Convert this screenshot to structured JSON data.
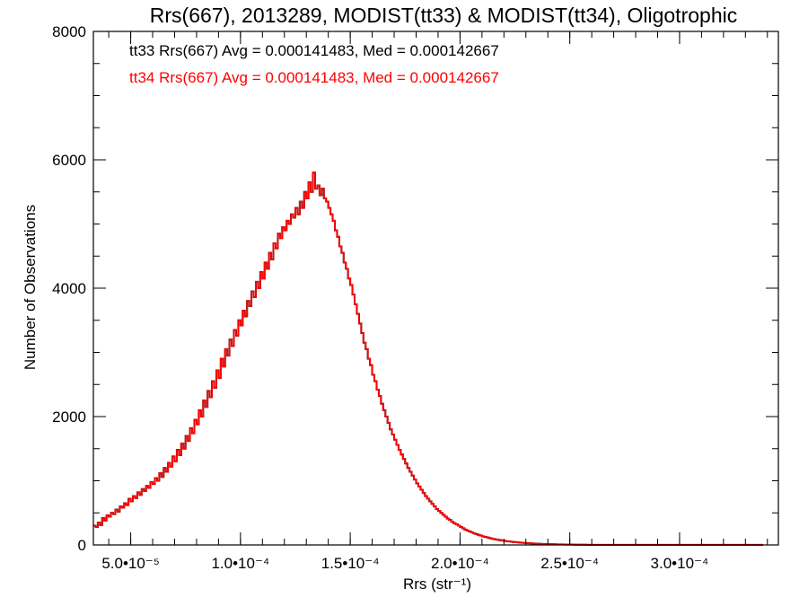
{
  "chart_data": {
    "type": "histogram",
    "title": "Rrs(667), 2013289, MODIST(tt33) & MODIST(tt34), Oligotrophic",
    "xlabel": "Rrs (str⁻¹)",
    "ylabel": "Number of Observations",
    "xlim": [
      3.3e-05,
      0.000345
    ],
    "ylim": [
      0,
      8000
    ],
    "x_ticks": [
      {
        "value": 5e-05,
        "label": "5.0•10⁻⁵"
      },
      {
        "value": 0.0001,
        "label": "1.0•10⁻⁴"
      },
      {
        "value": 0.00015,
        "label": "1.5•10⁻⁴"
      },
      {
        "value": 0.0002,
        "label": "2.0•10⁻⁴"
      },
      {
        "value": 0.00025,
        "label": "2.5•10⁻⁴"
      },
      {
        "value": 0.0003,
        "label": "3.0•10⁻⁴"
      }
    ],
    "y_ticks": [
      {
        "value": 0,
        "label": "0"
      },
      {
        "value": 2000,
        "label": "2000"
      },
      {
        "value": 4000,
        "label": "4000"
      },
      {
        "value": 6000,
        "label": "6000"
      },
      {
        "value": 8000,
        "label": "8000"
      }
    ],
    "annotations": [
      {
        "text": "tt33 Rrs(667) Avg = 0.000141483, Med = 0.000142667",
        "color": "#000000"
      },
      {
        "text": "tt34 Rrs(667) Avg = 0.000141483, Med = 0.000142667",
        "color": "#ff0000"
      }
    ],
    "bin_start": 3.3e-05,
    "bin_width": 1e-06,
    "series": [
      {
        "name": "tt33",
        "color": "#000000",
        "values": [
          300,
          280,
          350,
          310,
          420,
          380,
          460,
          440,
          500,
          480,
          550,
          520,
          600,
          580,
          650,
          620,
          720,
          680,
          760,
          730,
          820,
          780,
          870,
          840,
          920,
          890,
          980,
          950,
          1040,
          1000,
          1120,
          1060,
          1200,
          1140,
          1280,
          1220,
          1380,
          1300,
          1480,
          1400,
          1580,
          1500,
          1700,
          1620,
          1820,
          1740,
          1950,
          1880,
          2100,
          2000,
          2250,
          2150,
          2400,
          2300,
          2550,
          2450,
          2720,
          2600,
          2900,
          2780,
          3050,
          2950,
          3200,
          3100,
          3350,
          3260,
          3500,
          3420,
          3650,
          3560,
          3800,
          3720,
          3950,
          3860,
          4100,
          4000,
          4250,
          4150,
          4400,
          4300,
          4550,
          4450,
          4700,
          4620,
          4850,
          4780,
          4950,
          4900,
          5050,
          5000,
          5150,
          5100,
          5250,
          5150,
          5350,
          5250,
          5500,
          5400,
          5650,
          5500,
          5800,
          5550,
          5600,
          5450,
          5550,
          5400,
          5350,
          5250,
          5150,
          5050,
          4900,
          4800,
          4650,
          4550,
          4400,
          4300,
          4150,
          4050,
          3900,
          3750,
          3600,
          3450,
          3300,
          3150,
          3050,
          2900,
          2800,
          2650,
          2550,
          2420,
          2320,
          2200,
          2100,
          2000,
          1900,
          1800,
          1720,
          1640,
          1560,
          1480,
          1410,
          1340,
          1270,
          1200,
          1140,
          1080,
          1020,
          960,
          910,
          860,
          810,
          760,
          720,
          680,
          640,
          600,
          560,
          530,
          500,
          470,
          440,
          410,
          390,
          360,
          340,
          320,
          300,
          280,
          260,
          240,
          225,
          210,
          195,
          180,
          170,
          158,
          146,
          135,
          126,
          117,
          108,
          100,
          93,
          86,
          80,
          74,
          68,
          63,
          58,
          54,
          50,
          46,
          43,
          40,
          37,
          34,
          31,
          29,
          27,
          25,
          23,
          21,
          19,
          18,
          16,
          15,
          14,
          13,
          12,
          11,
          10,
          9,
          8,
          8,
          7,
          6,
          6,
          5,
          5,
          4,
          4,
          4,
          3,
          3,
          3,
          2,
          2,
          2,
          2,
          2,
          1,
          1,
          1,
          1,
          1,
          1,
          1,
          1,
          1,
          1,
          1,
          1,
          1,
          1,
          1,
          1,
          1,
          1,
          1,
          1,
          1,
          1,
          1,
          1,
          1,
          1,
          1,
          1,
          1,
          1,
          1,
          1,
          1,
          1,
          1,
          1,
          1,
          1,
          1,
          1,
          1,
          1,
          1,
          1,
          1,
          1,
          1,
          1,
          1,
          1,
          1,
          1,
          1,
          1,
          1,
          1,
          1,
          1,
          1,
          1,
          1,
          1,
          1,
          1,
          1,
          1,
          1,
          1,
          1,
          1,
          1,
          1,
          1,
          1,
          1
        ]
      },
      {
        "name": "tt34",
        "color": "#ff0000",
        "values": [
          300,
          280,
          350,
          310,
          420,
          380,
          460,
          440,
          500,
          480,
          550,
          520,
          600,
          580,
          650,
          620,
          720,
          680,
          760,
          730,
          820,
          780,
          870,
          840,
          920,
          890,
          980,
          950,
          1040,
          1000,
          1120,
          1060,
          1200,
          1140,
          1280,
          1220,
          1380,
          1300,
          1480,
          1400,
          1580,
          1500,
          1700,
          1620,
          1820,
          1740,
          1950,
          1880,
          2100,
          2000,
          2250,
          2150,
          2400,
          2300,
          2550,
          2450,
          2720,
          2600,
          2900,
          2780,
          3050,
          2950,
          3200,
          3100,
          3350,
          3260,
          3500,
          3420,
          3650,
          3560,
          3800,
          3720,
          3950,
          3860,
          4100,
          4000,
          4250,
          4150,
          4400,
          4300,
          4550,
          4450,
          4700,
          4620,
          4850,
          4780,
          4950,
          4900,
          5050,
          5000,
          5150,
          5100,
          5250,
          5150,
          5350,
          5250,
          5500,
          5400,
          5650,
          5500,
          5800,
          5550,
          5600,
          5450,
          5550,
          5400,
          5350,
          5250,
          5150,
          5050,
          4900,
          4800,
          4650,
          4550,
          4400,
          4300,
          4150,
          4050,
          3900,
          3750,
          3600,
          3450,
          3300,
          3150,
          3050,
          2900,
          2800,
          2650,
          2550,
          2420,
          2320,
          2200,
          2100,
          2000,
          1900,
          1800,
          1720,
          1640,
          1560,
          1480,
          1410,
          1340,
          1270,
          1200,
          1140,
          1080,
          1020,
          960,
          910,
          860,
          810,
          760,
          720,
          680,
          640,
          600,
          560,
          530,
          500,
          470,
          440,
          410,
          390,
          360,
          340,
          320,
          300,
          280,
          260,
          240,
          225,
          210,
          195,
          180,
          170,
          158,
          146,
          135,
          126,
          117,
          108,
          100,
          93,
          86,
          80,
          74,
          68,
          63,
          58,
          54,
          50,
          46,
          43,
          40,
          37,
          34,
          31,
          29,
          27,
          25,
          23,
          21,
          19,
          18,
          16,
          15,
          14,
          13,
          12,
          11,
          10,
          9,
          8,
          8,
          7,
          6,
          6,
          5,
          5,
          4,
          4,
          4,
          3,
          3,
          3,
          2,
          2,
          2,
          2,
          2,
          1,
          1,
          1,
          1,
          1,
          1,
          1,
          1,
          1,
          1,
          1,
          1,
          1,
          1,
          1,
          1,
          1,
          1,
          1,
          1,
          1,
          1,
          1,
          1,
          1,
          1,
          1,
          1,
          1,
          1,
          1,
          1,
          1,
          1,
          1,
          1,
          1,
          1,
          1,
          1,
          1,
          1,
          1,
          1,
          1,
          1,
          1,
          1,
          1,
          1,
          1,
          1,
          1,
          1,
          1,
          1,
          1,
          1,
          1,
          1,
          1,
          1,
          1,
          1,
          1,
          1,
          1,
          1,
          1,
          1,
          1,
          1,
          1,
          1,
          1
        ]
      }
    ],
    "grid": false,
    "legend": "none"
  }
}
